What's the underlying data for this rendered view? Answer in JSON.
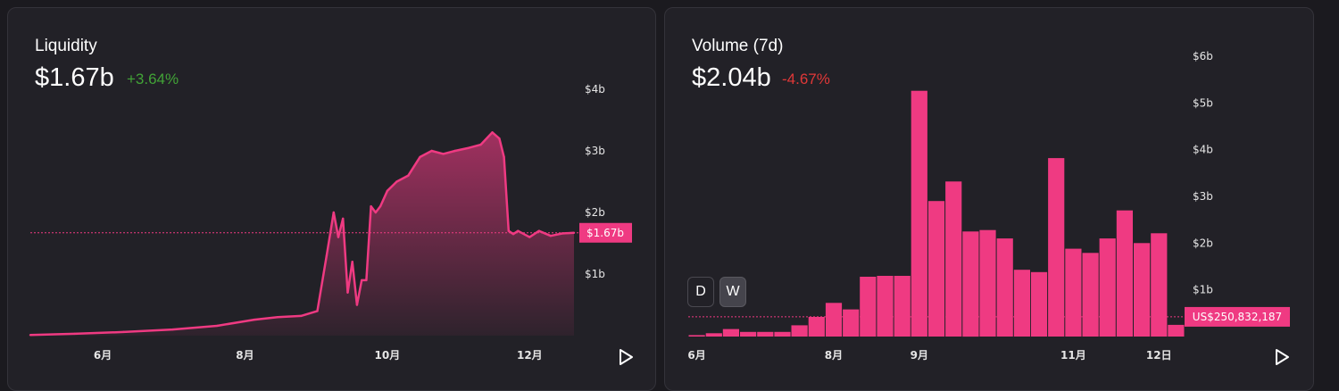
{
  "colors": {
    "accent": "#ef3a82",
    "positive": "#42a337",
    "negative": "#e03838",
    "background": "#222127"
  },
  "liquidity": {
    "title": "Liquidity",
    "value": "$1.67b",
    "change": "+3.64%",
    "current_label": "$1.67b",
    "play_icon": "play-icon"
  },
  "volume": {
    "title": "Volume (7d)",
    "value": "$2.04b",
    "change": "-4.67%",
    "current_label": "US$250,832,187",
    "toggle_d": "D",
    "toggle_w": "W",
    "play_icon": "play-icon"
  },
  "chart_data": [
    {
      "type": "area",
      "title": "Liquidity",
      "ylim": [
        0,
        4
      ],
      "y_unit": "billions USD",
      "y_ticks": [
        {
          "value": 1,
          "label": "$1b"
        },
        {
          "value": 2,
          "label": "$2b"
        },
        {
          "value": 3,
          "label": "$3b"
        },
        {
          "value": 4,
          "label": "$4b"
        }
      ],
      "x_range": [
        "2023-05-01",
        "2023-12-20"
      ],
      "x_ticks": [
        {
          "date": "2023-06-01",
          "label": "6月"
        },
        {
          "date": "2023-08-01",
          "label": "8月"
        },
        {
          "date": "2023-10-01",
          "label": "10月"
        },
        {
          "date": "2023-12-01",
          "label": "12月"
        }
      ],
      "current_value": 1.67,
      "current_label": "$1.67b",
      "x": [
        "2023-05-01",
        "2023-05-20",
        "2023-06-10",
        "2023-07-01",
        "2023-07-20",
        "2023-08-05",
        "2023-08-15",
        "2023-08-25",
        "2023-09-01",
        "2023-09-05",
        "2023-09-08",
        "2023-09-10",
        "2023-09-12",
        "2023-09-14",
        "2023-09-16",
        "2023-09-18",
        "2023-09-20",
        "2023-09-22",
        "2023-09-24",
        "2023-09-26",
        "2023-09-28",
        "2023-10-01",
        "2023-10-05",
        "2023-10-10",
        "2023-10-15",
        "2023-10-20",
        "2023-10-25",
        "2023-10-30",
        "2023-11-05",
        "2023-11-10",
        "2023-11-15",
        "2023-11-18",
        "2023-11-20",
        "2023-11-22",
        "2023-11-24",
        "2023-11-26",
        "2023-12-01",
        "2023-12-05",
        "2023-12-10",
        "2023-12-15",
        "2023-12-20"
      ],
      "y": [
        0.01,
        0.03,
        0.06,
        0.1,
        0.16,
        0.26,
        0.3,
        0.32,
        0.4,
        1.3,
        2.0,
        1.6,
        1.9,
        0.7,
        1.2,
        0.5,
        0.9,
        0.9,
        2.1,
        2.0,
        2.1,
        2.35,
        2.5,
        2.6,
        2.9,
        3.0,
        2.95,
        3.0,
        3.05,
        3.1,
        3.3,
        3.2,
        2.9,
        1.7,
        1.65,
        1.7,
        1.6,
        1.7,
        1.62,
        1.66,
        1.67
      ],
      "series": [
        {
          "name": "Liquidity"
        }
      ]
    },
    {
      "type": "bar",
      "title": "Volume (7d)",
      "ylim": [
        0,
        6
      ],
      "y_unit": "billions USD",
      "y_ticks": [
        {
          "value": 1,
          "label": "$1b"
        },
        {
          "value": 2,
          "label": "$2b"
        },
        {
          "value": 3,
          "label": "$3b"
        },
        {
          "value": 4,
          "label": "$4b"
        },
        {
          "value": 5,
          "label": "$5b"
        },
        {
          "value": 6,
          "label": "$6b"
        }
      ],
      "x_ticks": [
        {
          "index": 0,
          "label": "6月"
        },
        {
          "index": 8,
          "label": "8月"
        },
        {
          "index": 13,
          "label": "9月"
        },
        {
          "index": 22,
          "label": "11月"
        },
        {
          "index": 27,
          "label": "12日"
        }
      ],
      "current_value": 0.25,
      "current_label": "US$250,832,187",
      "values": [
        0.03,
        0.07,
        0.16,
        0.1,
        0.1,
        0.1,
        0.24,
        0.42,
        0.72,
        0.58,
        1.28,
        1.3,
        1.3,
        5.26,
        2.9,
        3.32,
        2.25,
        2.28,
        2.1,
        1.43,
        1.38,
        3.82,
        1.88,
        1.79,
        2.1,
        2.7,
        2.0,
        2.21,
        0.25
      ],
      "series": [
        {
          "name": "Volume"
        }
      ]
    }
  ]
}
